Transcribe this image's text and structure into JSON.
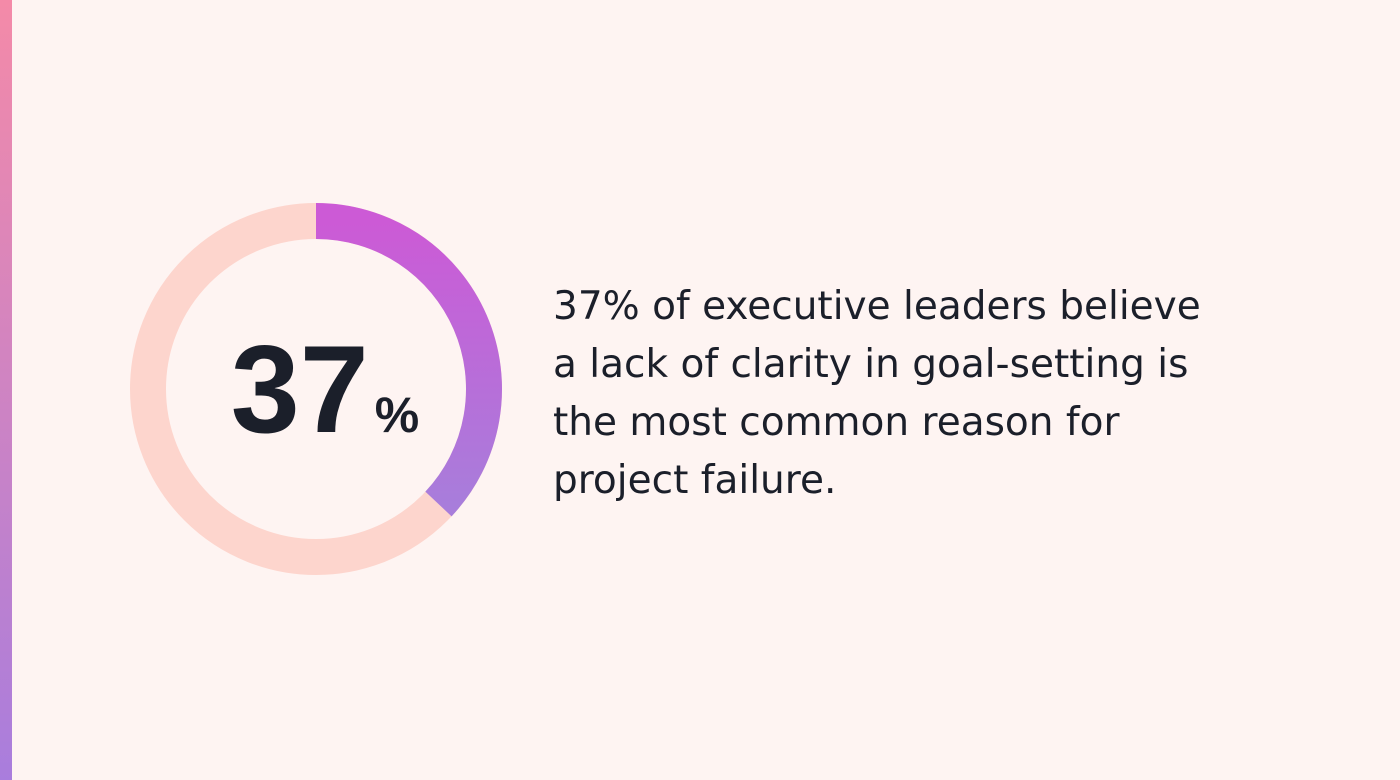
{
  "chart_data": {
    "type": "donut",
    "values": [
      37
    ],
    "value_labels": [
      "37"
    ],
    "value_unit": "%",
    "ylim": [
      0,
      100
    ],
    "color": "#c765d8",
    "track_color": "#fdd5cd",
    "caption_lines": [
      "37% of executive leaders believe",
      "a lack of clarity in goal-setting is",
      "the most common reason for",
      "project failure."
    ]
  }
}
